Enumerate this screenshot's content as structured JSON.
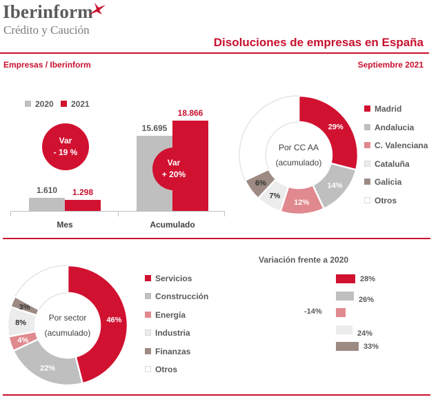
{
  "logo": {
    "name": "Iberinform",
    "tagline": "Crédito y Caución"
  },
  "header": {
    "title": "Disoluciones de empresas en España",
    "source": "Empresas / Iberinform",
    "date": "Septiembre 2021"
  },
  "colors": {
    "accent": "#c8102e",
    "bar2020": "#bfbfbf",
    "bar2021": "#d11130"
  },
  "chart_data": [
    {
      "type": "bar",
      "categories": [
        "Mes",
        "Acumulado"
      ],
      "series": [
        {
          "name": "2020",
          "values": [
            1610,
            15695
          ],
          "labels": [
            "1.610",
            "15.695"
          ],
          "color": "#bfbfbf"
        },
        {
          "name": "2021",
          "values": [
            1298,
            18866
          ],
          "labels": [
            "1.298",
            "18.866"
          ],
          "color": "#d11130"
        }
      ],
      "annotations": [
        {
          "line1": "Var",
          "line2": "- 19 %"
        },
        {
          "line1": "Var",
          "line2": "+ 20%"
        }
      ]
    },
    {
      "type": "pie",
      "center_label": [
        "Por CC AA",
        "(acumulado)"
      ],
      "slices": [
        {
          "name": "Madrid",
          "value": 29,
          "label": "29%",
          "color": "#d11130",
          "text_color": "#ffffff"
        },
        {
          "name": "Andalucia",
          "value": 14,
          "label": "14%",
          "color": "#bfbfbf",
          "text_color": "#ffffff"
        },
        {
          "name": "C. Valenciana",
          "value": 12,
          "label": "12%",
          "color": "#e0898f",
          "text_color": "#ffffff"
        },
        {
          "name": "Cataluña",
          "value": 7,
          "label": "7%",
          "color": "#ececec",
          "text_color": "#333333"
        },
        {
          "name": "Galicia",
          "value": 6,
          "label": "6%",
          "color": "#9c8a83",
          "text_color": "#333333"
        },
        {
          "name": "Otros",
          "value": 32,
          "label": "",
          "color": "#ffffff",
          "text_color": "#333333"
        }
      ]
    },
    {
      "type": "pie",
      "center_label": [
        "Por sector",
        "(acumulado)"
      ],
      "slices": [
        {
          "name": "Servicios",
          "value": 46,
          "label": "46%",
          "color": "#d11130",
          "text_color": "#ffffff"
        },
        {
          "name": "Construcción",
          "value": 22,
          "label": "22%",
          "color": "#bfbfbf",
          "text_color": "#ffffff"
        },
        {
          "name": "Energía",
          "value": 4,
          "label": "4%",
          "color": "#e0898f",
          "text_color": "#ffffff"
        },
        {
          "name": "Industria",
          "value": 8,
          "label": "8%",
          "color": "#ececec",
          "text_color": "#333333"
        },
        {
          "name": "Finanzas",
          "value": 3,
          "label": "3%",
          "color": "#9c8a83",
          "text_color": "#333333"
        },
        {
          "name": "Otros",
          "value": 17,
          "label": "",
          "color": "#ffffff",
          "text_color": "#333333"
        }
      ]
    },
    {
      "type": "bar",
      "title": "Variación frente a 2020",
      "categories": [
        "Servicios",
        "Construcción",
        "Energía",
        "Industria",
        "Finanzas"
      ],
      "values": [
        28,
        26,
        -14,
        24,
        33
      ],
      "labels": [
        "28%",
        "26%",
        "-14%",
        "24%",
        "33%"
      ],
      "colors": [
        "#d11130",
        "#bfbfbf",
        "#e0898f",
        "#ececec",
        "#9c8a83"
      ]
    }
  ]
}
